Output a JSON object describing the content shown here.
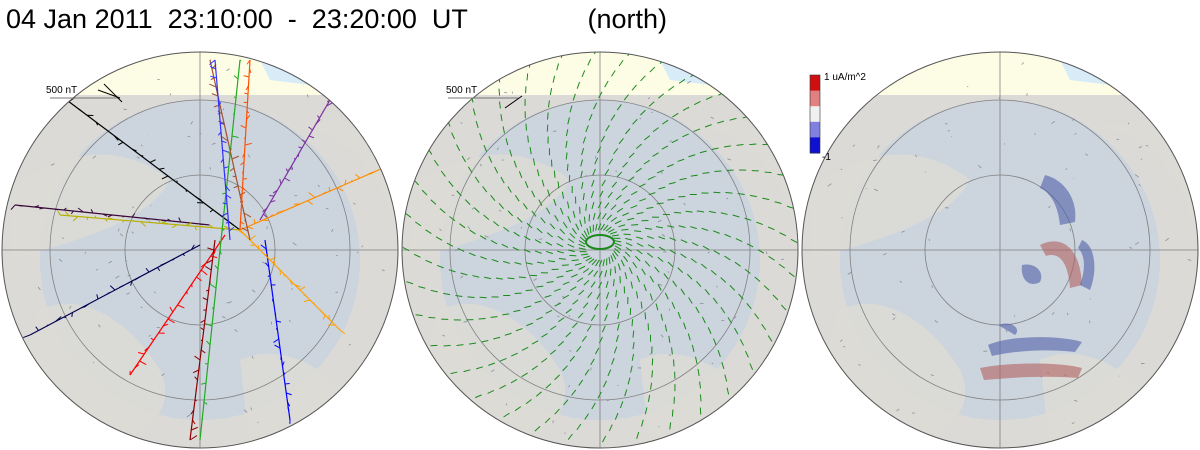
{
  "header": {
    "date": "04 Jan 2011",
    "time_start": "23:10:00",
    "separator": "-",
    "time_end": "23:20:00",
    "time_unit": "UT",
    "hemisphere": "(north)"
  },
  "panels": [
    {
      "name": "track-vectors-panel",
      "scale_label": "500 nT"
    },
    {
      "name": "fitted-vectors-panel",
      "scale_label": "500 nT"
    },
    {
      "name": "current-density-panel",
      "colorbar": {
        "max_label": "1 uA/m^2",
        "min_label": "-1",
        "colors": [
          "#d01010",
          "#e08080",
          "#f0f0f0",
          "#8080e0",
          "#1010d0"
        ]
      }
    }
  ],
  "colors": {
    "land": "#dcdad6",
    "ocean_auroral": "#c9d2df",
    "sunlit_cap": "#fdfde6",
    "sea_ice": "#d8ecf8",
    "grid": "#808080",
    "fitted_vectors": "#1a8a1a"
  },
  "track_colors": [
    "#000000",
    "#3a0a3a",
    "#b8b000",
    "#000050",
    "#ff0000",
    "#8b0000",
    "#0000ff",
    "#ff8c00",
    "#ffa000",
    "#22aa22",
    "#7b2fa0",
    "#a0522d",
    "#ff5000",
    "#3030ff"
  ],
  "current_blobs": [
    {
      "sign": "negative",
      "shape": "arc-upper"
    },
    {
      "sign": "negative",
      "shape": "left-blob"
    },
    {
      "sign": "positive",
      "shape": "center-arc"
    },
    {
      "sign": "negative",
      "shape": "right-arc"
    },
    {
      "sign": "negative",
      "shape": "lower-band"
    },
    {
      "sign": "positive",
      "shape": "lowest-band"
    }
  ]
}
